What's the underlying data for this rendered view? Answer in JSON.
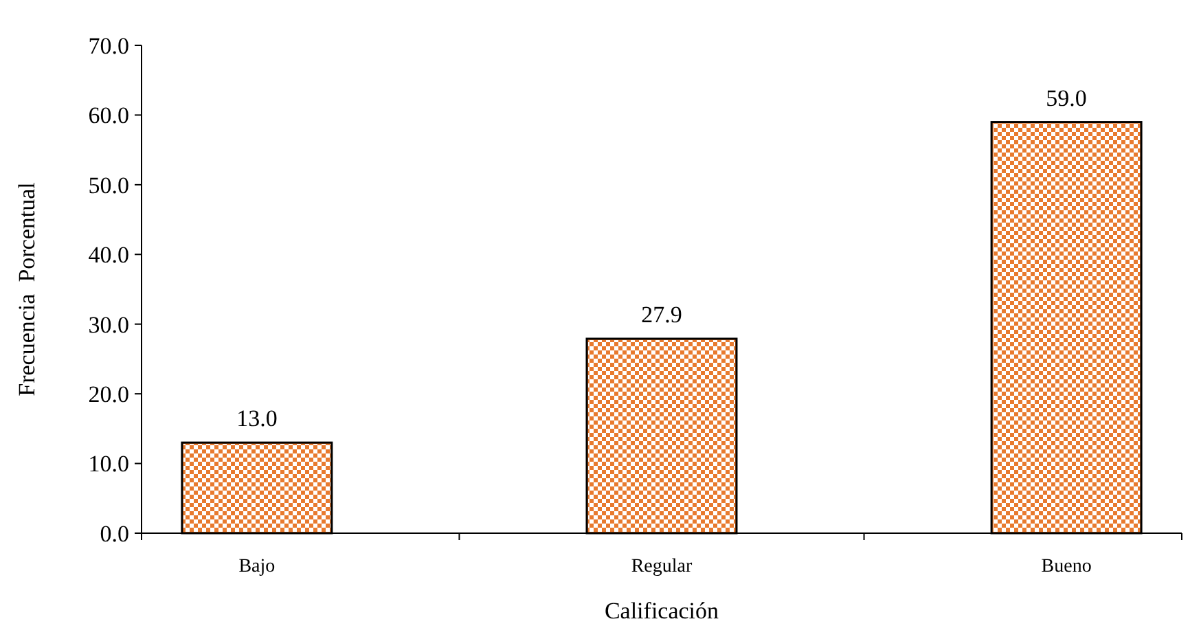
{
  "chart_data": {
    "type": "bar",
    "xlabel": "Calificación",
    "ylabel": "Frecuencia  Porcentual",
    "categories": [
      "Bajo",
      "Regular",
      "Bueno"
    ],
    "values": [
      13.0,
      27.9,
      59.0
    ],
    "value_labels": [
      "13.0",
      "27.9",
      "59.0"
    ],
    "color": "#e87a2e",
    "ylim": [
      0,
      70
    ],
    "yticks": [
      {
        "value": 0,
        "label": "0.0"
      },
      {
        "value": 10,
        "label": "10.0"
      },
      {
        "value": 20,
        "label": "20.0"
      },
      {
        "value": 30,
        "label": "30.0"
      },
      {
        "value": 40,
        "label": "40.0"
      },
      {
        "value": 50,
        "label": "50.0"
      },
      {
        "value": 60,
        "label": "60.0"
      },
      {
        "value": 70,
        "label": "70.0"
      }
    ],
    "grid": false
  }
}
